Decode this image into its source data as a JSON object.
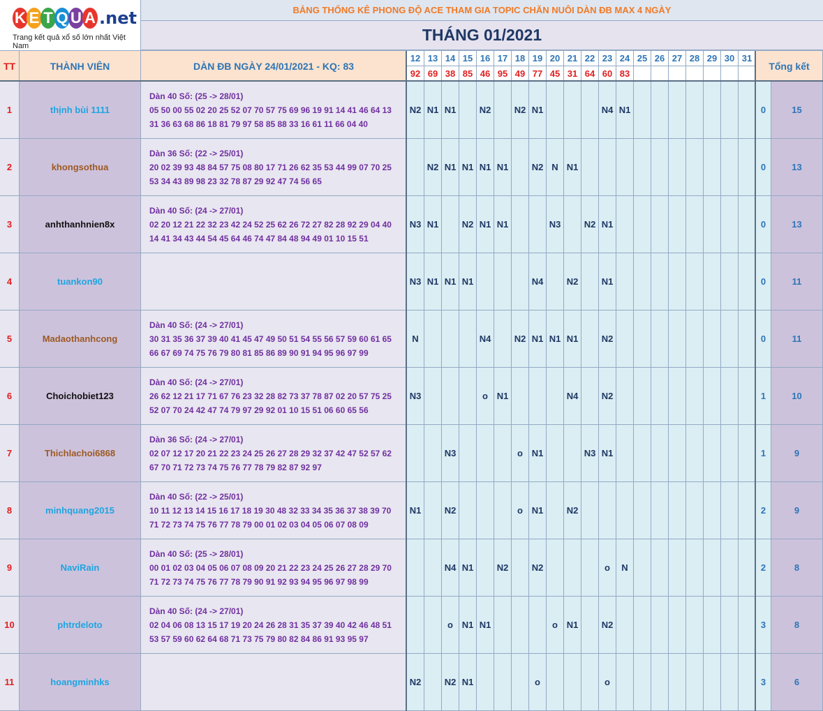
{
  "logo": {
    "letters": [
      "K",
      "E",
      "T",
      "Q",
      "U",
      "A"
    ],
    "letter_colors": [
      "#e8352b",
      "#f4a21c",
      "#3aa54a",
      "#1a8fd6",
      "#7b3fa0",
      "#e8352b"
    ],
    "suffix": ".net",
    "tagline": "Trang kết quả xổ số lớn nhất Việt Nam"
  },
  "header": {
    "title": "BẢNG THỐNG KÊ PHONG ĐỘ ACE THAM GIA TOPIC CHĂN NUÔI DÀN ĐB MAX 4 NGÀY",
    "month": "THÁNG 01/2021"
  },
  "columns": {
    "tt": "TT",
    "member": "THÀNH VIÊN",
    "dan": "DÀN ĐB NGÀY 24/01/2021 - KQ: 83",
    "summary": "Tổng kết"
  },
  "days": [
    "12",
    "13",
    "14",
    "15",
    "16",
    "17",
    "18",
    "19",
    "20",
    "21",
    "22",
    "23",
    "24",
    "25",
    "26",
    "27",
    "28",
    "29",
    "30",
    "31"
  ],
  "results": [
    "92",
    "69",
    "38",
    "85",
    "46",
    "95",
    "49",
    "77",
    "45",
    "31",
    "64",
    "60",
    "83",
    "",
    "",
    "",
    "",
    "",
    "",
    ""
  ],
  "rows": [
    {
      "tt": "1",
      "name": "thịnh bùi 1111",
      "color": "#1ea5e0",
      "dan": [
        "Dàn 40 Số: (25 -> 28/01)",
        "05 50 00 55 02 20 25 52 07 70 57 75 69 96 19 91 14 41 46 64 13",
        "31 36 63 68 86 18 81 79 97 58 85 88 33 16 61 11 66 04 40"
      ],
      "hits": [
        "N2",
        "N1",
        "N1",
        "",
        "N2",
        "",
        "N2",
        "N1",
        "",
        "",
        "",
        "N4",
        "N1",
        "",
        "",
        "",
        "",
        "",
        "",
        ""
      ],
      "sub": "0",
      "total": "15"
    },
    {
      "tt": "2",
      "name": "khongsothua",
      "color": "#9c5a23",
      "dan": [
        "Dàn 36 Số: (22 -> 25/01)",
        "20 02 39 93 48 84 57 75 08 80 17 71 26 62 35 53 44 99 07 70 25",
        "53 34 43 89 98 23 32 78 87 29 92 47 74 56 65"
      ],
      "hits": [
        "",
        "N2",
        "N1",
        "N1",
        "N1",
        "N1",
        "",
        "N2",
        "N",
        "N1",
        "",
        "",
        "",
        "",
        "",
        "",
        "",
        "",
        "",
        ""
      ],
      "sub": "0",
      "total": "13"
    },
    {
      "tt": "3",
      "name": "anhthanhnien8x",
      "color": "#111111",
      "dan": [
        "Dàn 40 Số: (24 -> 27/01)",
        "02 20 12 21 22 32 23 42 24 52 25 62 26 72 27 82 28 92 29 04 40",
        "14 41 34 43 44 54 45 64 46 74 47 84 48 94 49 01 10 15 51"
      ],
      "hits": [
        "N3",
        "N1",
        "",
        "N2",
        "N1",
        "N1",
        "",
        "",
        "N3",
        "",
        "N2",
        "N1",
        "",
        "",
        "",
        "",
        "",
        "",
        "",
        ""
      ],
      "sub": "0",
      "total": "13"
    },
    {
      "tt": "4",
      "name": "tuankon90",
      "color": "#1ea5e0",
      "dan": [],
      "hits": [
        "N3",
        "N1",
        "N1",
        "N1",
        "",
        "",
        "",
        "N4",
        "",
        "N2",
        "",
        "N1",
        "",
        "",
        "",
        "",
        "",
        "",
        "",
        ""
      ],
      "sub": "0",
      "total": "11"
    },
    {
      "tt": "5",
      "name": "Madaothanhcong",
      "color": "#9c5a23",
      "dan": [
        "Dàn 40 Số: (24 -> 27/01)",
        "30 31 35 36 37 39 40 41 45 47 49 50 51 54 55 56 57 59 60 61 65",
        "66 67 69 74 75 76 79 80 81 85 86 89 90 91 94 95 96 97 99"
      ],
      "hits": [
        "N",
        "",
        "",
        "",
        "N4",
        "",
        "N2",
        "N1",
        "N1",
        "N1",
        "",
        "N2",
        "",
        "",
        "",
        "",
        "",
        "",
        "",
        ""
      ],
      "sub": "0",
      "total": "11"
    },
    {
      "tt": "6",
      "name": "Choichobiet123",
      "color": "#111111",
      "dan": [
        "Dàn 40 Số: (24 -> 27/01)",
        "26 62 12 21 17 71 67 76 23 32 28 82 73 37 78 87 02 20 57 75 25",
        "52 07 70 24 42 47 74 79 97 29 92 01 10 15 51 06 60 65 56"
      ],
      "hits": [
        "N3",
        "",
        "",
        "",
        "o",
        "N1",
        "",
        "",
        "",
        "N4",
        "",
        "N2",
        "",
        "",
        "",
        "",
        "",
        "",
        "",
        ""
      ],
      "sub": "1",
      "total": "10"
    },
    {
      "tt": "7",
      "name": "Thichlachoi6868",
      "color": "#9c5a23",
      "dan": [
        "Dàn 36 Số: (24 -> 27/01)",
        "02 07 12 17 20 21 22 23 24 25 26 27 28 29 32 37 42 47 52 57 62",
        "67 70 71 72 73 74 75 76 77 78 79 82 87 92 97"
      ],
      "hits": [
        "",
        "",
        "N3",
        "",
        "",
        "",
        "o",
        "N1",
        "",
        "",
        "N3",
        "N1",
        "",
        "",
        "",
        "",
        "",
        "",
        "",
        ""
      ],
      "sub": "1",
      "total": "9"
    },
    {
      "tt": "8",
      "name": "minhquang2015",
      "color": "#1ea5e0",
      "dan": [
        "Dàn 40 Số: (22 -> 25/01)",
        "10 11 12 13 14 15 16 17 18 19 30 48 32 33 34 35 36 37 38 39 70",
        "71 72 73 74 75 76 77 78 79 00 01 02 03 04 05 06 07 08 09"
      ],
      "hits": [
        "N1",
        "",
        "N2",
        "",
        "",
        "",
        "o",
        "N1",
        "",
        "N2",
        "",
        "",
        "",
        "",
        "",
        "",
        "",
        "",
        "",
        ""
      ],
      "sub": "2",
      "total": "9"
    },
    {
      "tt": "9",
      "name": "NaviRain",
      "color": "#1ea5e0",
      "dan": [
        "Dàn 40 Số: (25 -> 28/01)",
        "00 01 02 03 04 05 06 07 08 09 20 21 22 23 24 25 26 27 28 29 70",
        "71 72 73 74 75 76 77 78 79 90 91 92 93 94 95 96 97 98 99"
      ],
      "hits": [
        "",
        "",
        "N4",
        "N1",
        "",
        "N2",
        "",
        "N2",
        "",
        "",
        "",
        "o",
        "N",
        "",
        "",
        "",
        "",
        "",
        "",
        ""
      ],
      "sub": "2",
      "total": "8"
    },
    {
      "tt": "10",
      "name": "phtrdeloto",
      "color": "#1ea5e0",
      "dan": [
        "Dàn 40 Số: (24 -> 27/01)",
        "02 04 06 08 13 15 17 19 20 24 26 28 31 35 37 39 40 42 46 48 51",
        "53 57 59 60 62 64 68 71 73 75 79 80 82 84 86 91 93 95 97"
      ],
      "hits": [
        "",
        "",
        "o",
        "N1",
        "N1",
        "",
        "",
        "",
        "o",
        "N1",
        "",
        "N2",
        "",
        "",
        "",
        "",
        "",
        "",
        "",
        ""
      ],
      "sub": "3",
      "total": "8"
    },
    {
      "tt": "11",
      "name": "hoangminhks",
      "color": "#1ea5e0",
      "dan": [],
      "hits": [
        "N2",
        "",
        "N2",
        "N1",
        "",
        "",
        "",
        "o",
        "",
        "",
        "",
        "o",
        "",
        "",
        "",
        "",
        "",
        "",
        "",
        ""
      ],
      "sub": "3",
      "total": "6"
    }
  ]
}
